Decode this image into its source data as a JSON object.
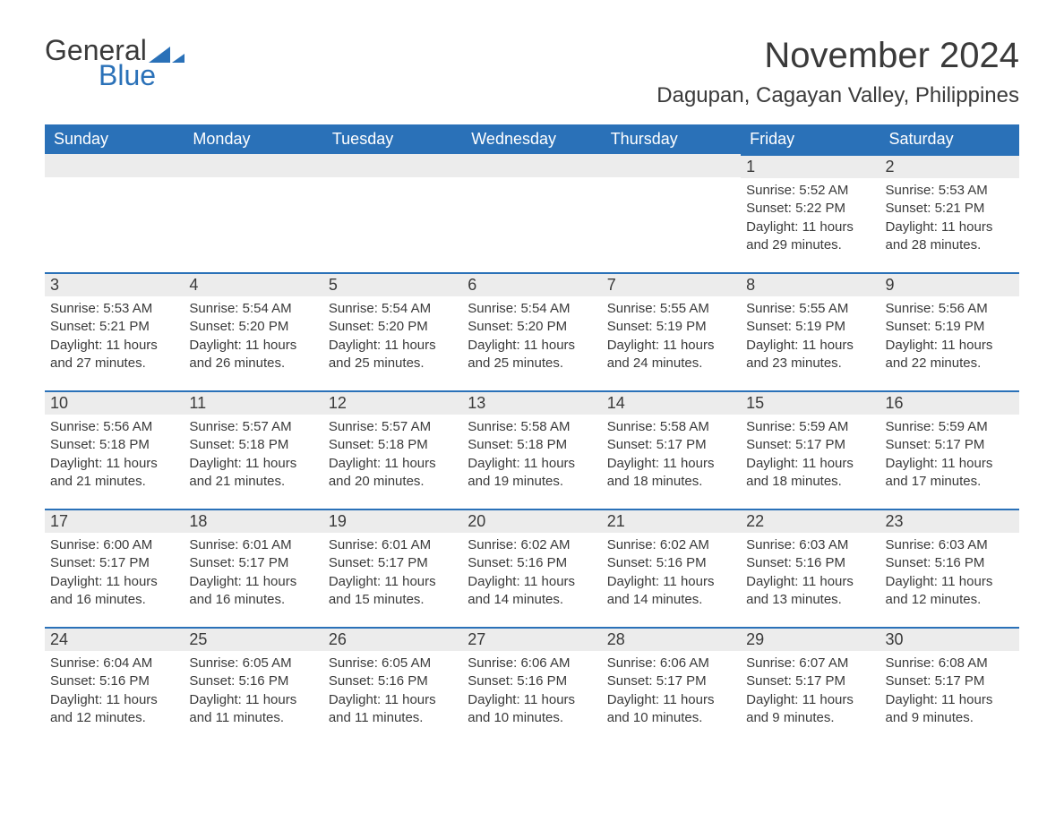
{
  "logo": {
    "word1": "General",
    "word2": "Blue",
    "mark_color": "#2a71b8",
    "text_color": "#3a3a3a"
  },
  "title": "November 2024",
  "location": "Dagupan, Cagayan Valley, Philippines",
  "colors": {
    "header_bg": "#2a71b8",
    "header_text": "#ffffff",
    "daynum_bg": "#ececec",
    "row_accent": "#2a71b8",
    "body_text": "#3a3a3a",
    "page_bg": "#ffffff"
  },
  "typography": {
    "title_fontsize": 40,
    "location_fontsize": 24,
    "header_fontsize": 18,
    "body_fontsize": 15
  },
  "weekdays": [
    "Sunday",
    "Monday",
    "Tuesday",
    "Wednesday",
    "Thursday",
    "Friday",
    "Saturday"
  ],
  "weeks": [
    [
      null,
      null,
      null,
      null,
      null,
      {
        "n": "1",
        "sunrise": "Sunrise: 5:52 AM",
        "sunset": "Sunset: 5:22 PM",
        "daylight": "Daylight: 11 hours and 29 minutes."
      },
      {
        "n": "2",
        "sunrise": "Sunrise: 5:53 AM",
        "sunset": "Sunset: 5:21 PM",
        "daylight": "Daylight: 11 hours and 28 minutes."
      }
    ],
    [
      {
        "n": "3",
        "sunrise": "Sunrise: 5:53 AM",
        "sunset": "Sunset: 5:21 PM",
        "daylight": "Daylight: 11 hours and 27 minutes."
      },
      {
        "n": "4",
        "sunrise": "Sunrise: 5:54 AM",
        "sunset": "Sunset: 5:20 PM",
        "daylight": "Daylight: 11 hours and 26 minutes."
      },
      {
        "n": "5",
        "sunrise": "Sunrise: 5:54 AM",
        "sunset": "Sunset: 5:20 PM",
        "daylight": "Daylight: 11 hours and 25 minutes."
      },
      {
        "n": "6",
        "sunrise": "Sunrise: 5:54 AM",
        "sunset": "Sunset: 5:20 PM",
        "daylight": "Daylight: 11 hours and 25 minutes."
      },
      {
        "n": "7",
        "sunrise": "Sunrise: 5:55 AM",
        "sunset": "Sunset: 5:19 PM",
        "daylight": "Daylight: 11 hours and 24 minutes."
      },
      {
        "n": "8",
        "sunrise": "Sunrise: 5:55 AM",
        "sunset": "Sunset: 5:19 PM",
        "daylight": "Daylight: 11 hours and 23 minutes."
      },
      {
        "n": "9",
        "sunrise": "Sunrise: 5:56 AM",
        "sunset": "Sunset: 5:19 PM",
        "daylight": "Daylight: 11 hours and 22 minutes."
      }
    ],
    [
      {
        "n": "10",
        "sunrise": "Sunrise: 5:56 AM",
        "sunset": "Sunset: 5:18 PM",
        "daylight": "Daylight: 11 hours and 21 minutes."
      },
      {
        "n": "11",
        "sunrise": "Sunrise: 5:57 AM",
        "sunset": "Sunset: 5:18 PM",
        "daylight": "Daylight: 11 hours and 21 minutes."
      },
      {
        "n": "12",
        "sunrise": "Sunrise: 5:57 AM",
        "sunset": "Sunset: 5:18 PM",
        "daylight": "Daylight: 11 hours and 20 minutes."
      },
      {
        "n": "13",
        "sunrise": "Sunrise: 5:58 AM",
        "sunset": "Sunset: 5:18 PM",
        "daylight": "Daylight: 11 hours and 19 minutes."
      },
      {
        "n": "14",
        "sunrise": "Sunrise: 5:58 AM",
        "sunset": "Sunset: 5:17 PM",
        "daylight": "Daylight: 11 hours and 18 minutes."
      },
      {
        "n": "15",
        "sunrise": "Sunrise: 5:59 AM",
        "sunset": "Sunset: 5:17 PM",
        "daylight": "Daylight: 11 hours and 18 minutes."
      },
      {
        "n": "16",
        "sunrise": "Sunrise: 5:59 AM",
        "sunset": "Sunset: 5:17 PM",
        "daylight": "Daylight: 11 hours and 17 minutes."
      }
    ],
    [
      {
        "n": "17",
        "sunrise": "Sunrise: 6:00 AM",
        "sunset": "Sunset: 5:17 PM",
        "daylight": "Daylight: 11 hours and 16 minutes."
      },
      {
        "n": "18",
        "sunrise": "Sunrise: 6:01 AM",
        "sunset": "Sunset: 5:17 PM",
        "daylight": "Daylight: 11 hours and 16 minutes."
      },
      {
        "n": "19",
        "sunrise": "Sunrise: 6:01 AM",
        "sunset": "Sunset: 5:17 PM",
        "daylight": "Daylight: 11 hours and 15 minutes."
      },
      {
        "n": "20",
        "sunrise": "Sunrise: 6:02 AM",
        "sunset": "Sunset: 5:16 PM",
        "daylight": "Daylight: 11 hours and 14 minutes."
      },
      {
        "n": "21",
        "sunrise": "Sunrise: 6:02 AM",
        "sunset": "Sunset: 5:16 PM",
        "daylight": "Daylight: 11 hours and 14 minutes."
      },
      {
        "n": "22",
        "sunrise": "Sunrise: 6:03 AM",
        "sunset": "Sunset: 5:16 PM",
        "daylight": "Daylight: 11 hours and 13 minutes."
      },
      {
        "n": "23",
        "sunrise": "Sunrise: 6:03 AM",
        "sunset": "Sunset: 5:16 PM",
        "daylight": "Daylight: 11 hours and 12 minutes."
      }
    ],
    [
      {
        "n": "24",
        "sunrise": "Sunrise: 6:04 AM",
        "sunset": "Sunset: 5:16 PM",
        "daylight": "Daylight: 11 hours and 12 minutes."
      },
      {
        "n": "25",
        "sunrise": "Sunrise: 6:05 AM",
        "sunset": "Sunset: 5:16 PM",
        "daylight": "Daylight: 11 hours and 11 minutes."
      },
      {
        "n": "26",
        "sunrise": "Sunrise: 6:05 AM",
        "sunset": "Sunset: 5:16 PM",
        "daylight": "Daylight: 11 hours and 11 minutes."
      },
      {
        "n": "27",
        "sunrise": "Sunrise: 6:06 AM",
        "sunset": "Sunset: 5:16 PM",
        "daylight": "Daylight: 11 hours and 10 minutes."
      },
      {
        "n": "28",
        "sunrise": "Sunrise: 6:06 AM",
        "sunset": "Sunset: 5:17 PM",
        "daylight": "Daylight: 11 hours and 10 minutes."
      },
      {
        "n": "29",
        "sunrise": "Sunrise: 6:07 AM",
        "sunset": "Sunset: 5:17 PM",
        "daylight": "Daylight: 11 hours and 9 minutes."
      },
      {
        "n": "30",
        "sunrise": "Sunrise: 6:08 AM",
        "sunset": "Sunset: 5:17 PM",
        "daylight": "Daylight: 11 hours and 9 minutes."
      }
    ]
  ]
}
